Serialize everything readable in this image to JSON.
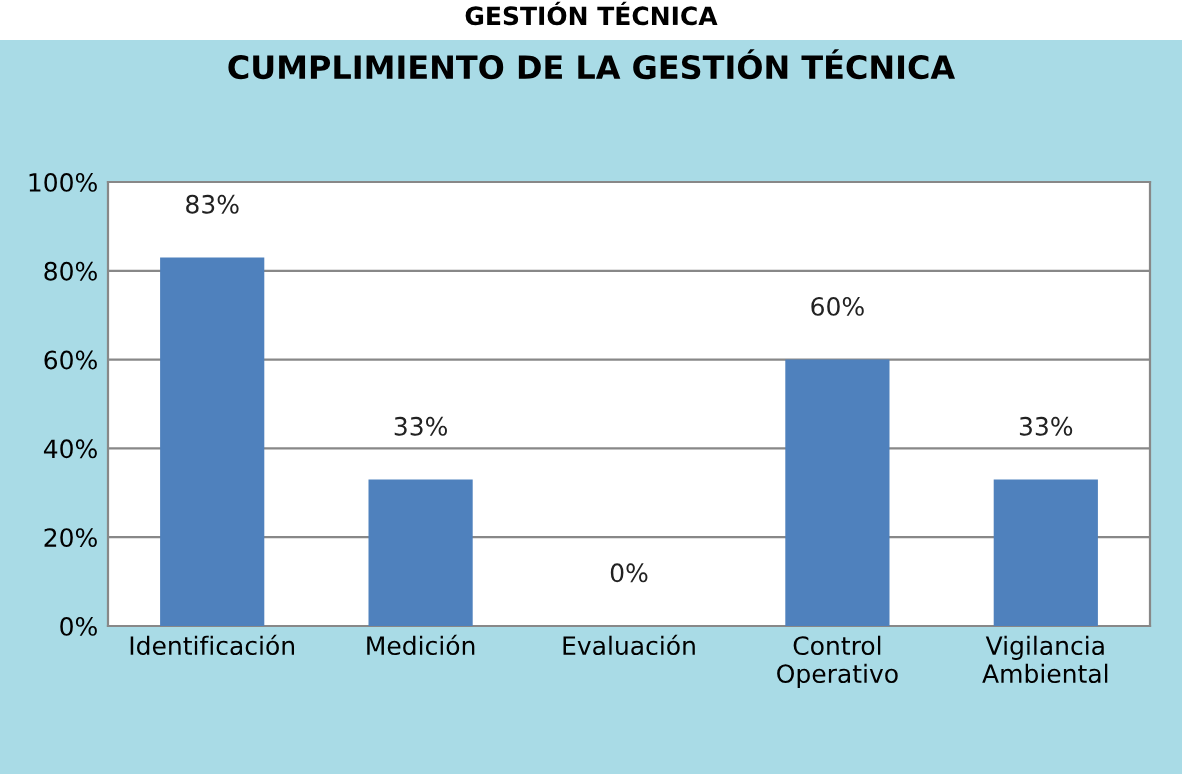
{
  "chart_data": {
    "type": "bar",
    "title": "CUMPLIMIENTO DE LA GESTIÓN TÉCNICA",
    "annotations": [
      "GESTIÓN TÉCNICA"
    ],
    "categories": [
      "Identificación",
      "Medición",
      "Evaluación",
      "Control\nOperativo",
      "Vigilancia\nAmbiental"
    ],
    "values": [
      83,
      33,
      0,
      60,
      33
    ],
    "color": "#4f81bd",
    "value_labels": [
      "83%",
      "33%",
      "0%",
      "60%",
      "33%"
    ],
    "ylim": [
      0,
      100
    ],
    "yticks": [
      {
        "value": 0,
        "label": "0%"
      },
      {
        "value": 20,
        "label": "20%"
      },
      {
        "value": 40,
        "label": "40%"
      },
      {
        "value": 60,
        "label": "60%"
      },
      {
        "value": 80,
        "label": "80%"
      },
      {
        "value": 100,
        "label": "100%"
      }
    ],
    "grid": "y",
    "legend": false
  }
}
